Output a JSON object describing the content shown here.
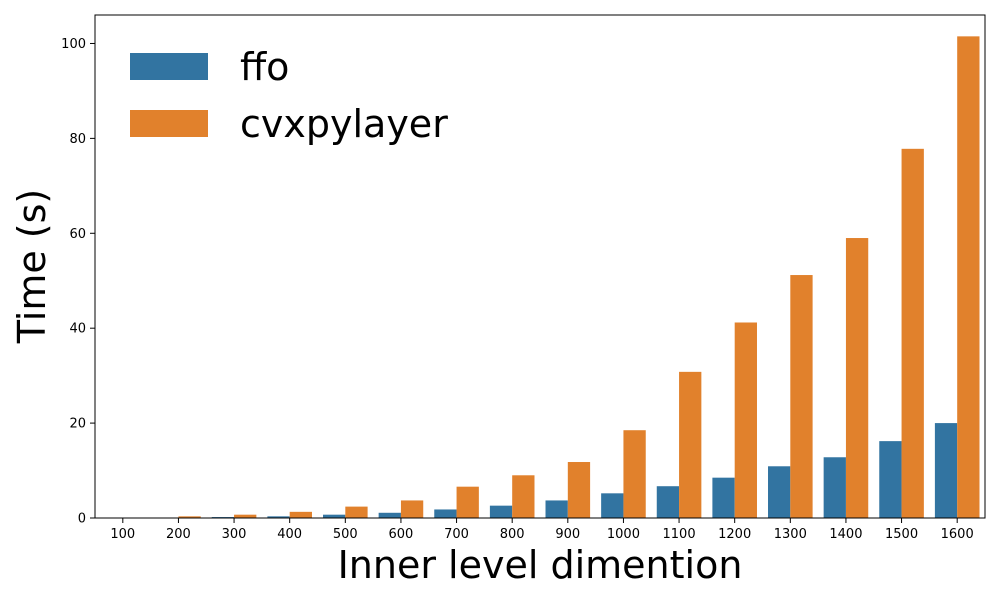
{
  "chart_data": {
    "type": "bar",
    "title": "",
    "xlabel": "Inner level dimention",
    "ylabel": "Time (s)",
    "ylim": [
      0,
      106
    ],
    "yticks": [
      0,
      20,
      40,
      60,
      80,
      100
    ],
    "categories": [
      "100",
      "200",
      "300",
      "400",
      "500",
      "600",
      "700",
      "800",
      "900",
      "1000",
      "1100",
      "1200",
      "1300",
      "1400",
      "1500",
      "1600"
    ],
    "series": [
      {
        "name": "ffo",
        "color": "#3274a1",
        "values": [
          0.05,
          0.1,
          0.2,
          0.35,
          0.7,
          1.1,
          1.8,
          2.6,
          3.7,
          5.2,
          6.7,
          8.5,
          10.9,
          12.8,
          16.2,
          20.0
        ]
      },
      {
        "name": "cvxpylayer",
        "color": "#e1812c",
        "values": [
          0.1,
          0.35,
          0.7,
          1.3,
          2.4,
          3.7,
          6.6,
          9.0,
          11.8,
          18.5,
          30.8,
          41.2,
          51.2,
          59.0,
          77.8,
          101.5
        ]
      }
    ],
    "legend_position": "top-left",
    "grid": false
  }
}
